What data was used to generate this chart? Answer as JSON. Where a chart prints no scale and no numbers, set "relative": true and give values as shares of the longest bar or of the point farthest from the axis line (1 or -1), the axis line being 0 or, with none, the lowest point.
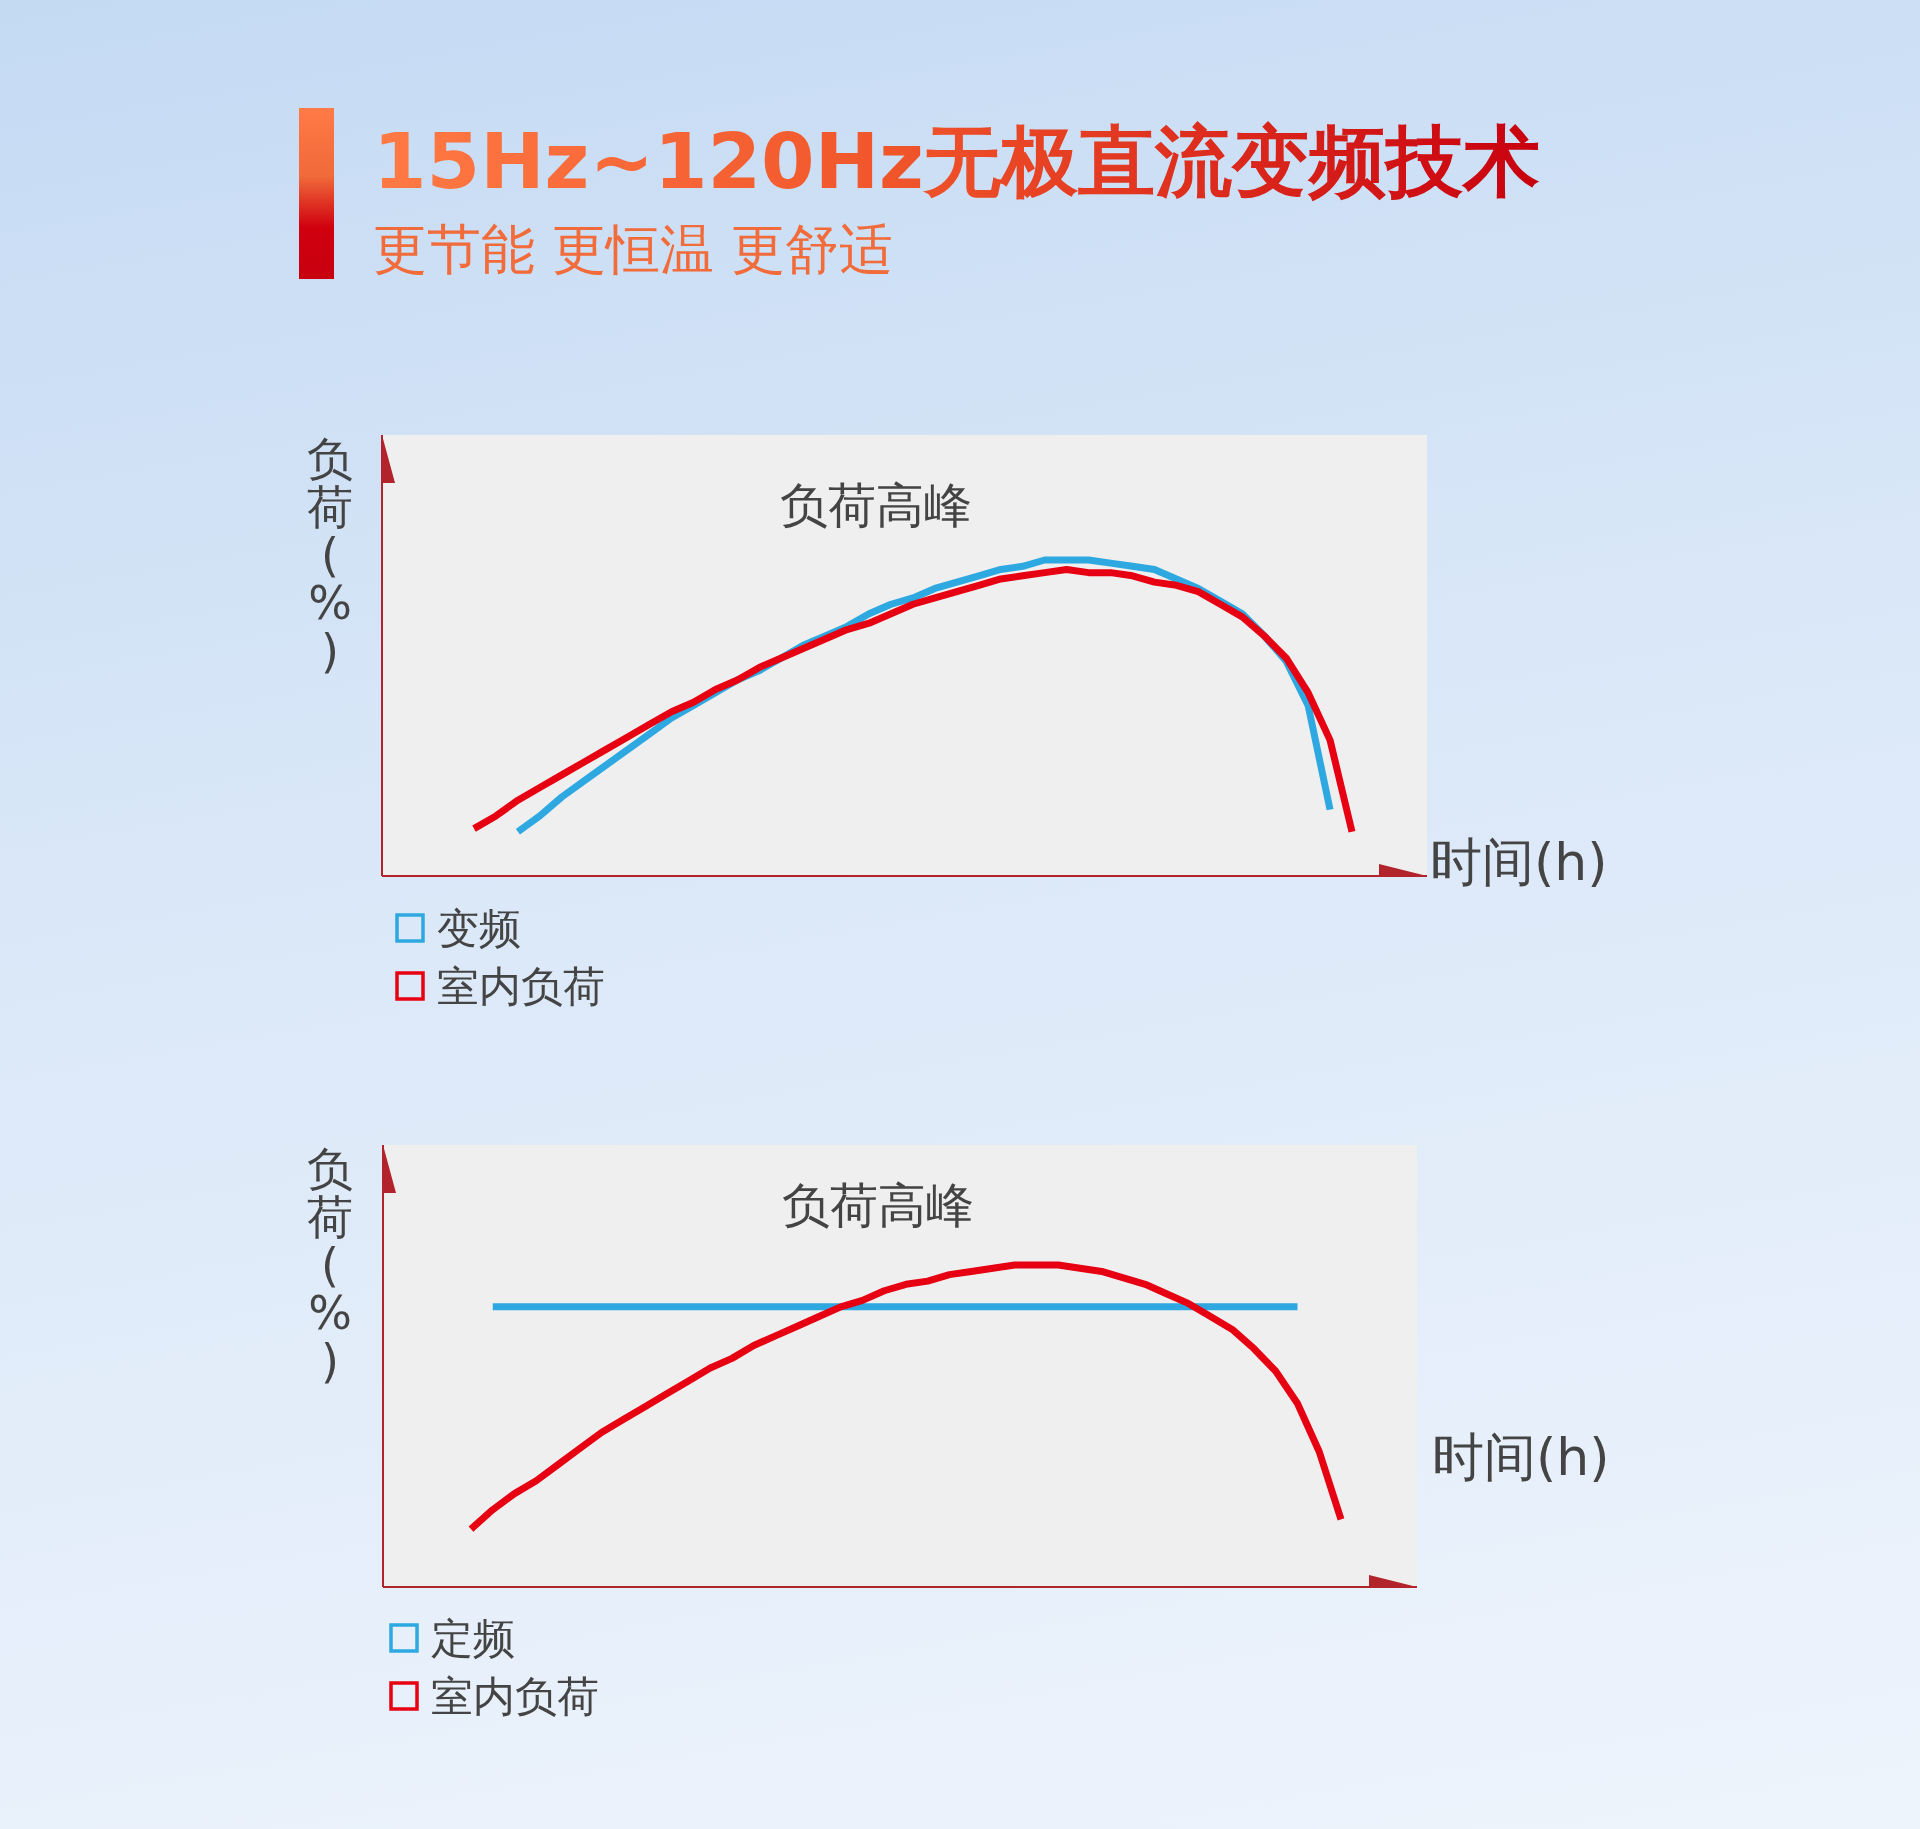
{
  "chart_data": [
    {
      "type": "line",
      "title": "15Hz~120Hz无极直流变频技术",
      "subtitle": "更节能 更恒温 更舒适",
      "relative": true,
      "xlabel": "时间(h)",
      "ylabel": "负荷(%)",
      "annotations": [
        "负荷高峰"
      ],
      "legend": "bottom left",
      "categories": [
        null,
        null,
        null,
        null,
        null,
        null,
        null,
        null,
        null,
        null,
        null,
        null,
        null,
        null,
        null,
        null,
        null,
        null,
        null,
        null,
        null,
        null,
        null,
        null,
        null,
        null,
        null,
        null,
        null,
        null,
        null,
        null,
        null,
        null,
        null,
        null,
        null,
        null,
        null,
        null,
        null
      ],
      "series": [
        {
          "name": "变频",
          "color": "#2ea8e0",
          "values": [
            null,
            null,
            0.14,
            0.19,
            0.25,
            0.3,
            0.35,
            0.4,
            0.45,
            0.5,
            0.54,
            0.58,
            0.62,
            0.65,
            0.69,
            0.73,
            0.76,
            0.79,
            0.83,
            0.86,
            0.88,
            0.91,
            0.93,
            0.95,
            0.97,
            0.98,
            1.0,
            1.0,
            1.0,
            0.99,
            0.98,
            0.97,
            0.94,
            0.91,
            0.87,
            0.83,
            0.76,
            0.68,
            0.54,
            0.21,
            null
          ]
        },
        {
          "name": "室内负荷",
          "color": "#e60012",
          "values": [
            0.15,
            0.19,
            0.24,
            0.28,
            0.32,
            0.36,
            0.4,
            0.44,
            0.48,
            0.52,
            0.55,
            0.59,
            0.62,
            0.66,
            0.69,
            0.72,
            0.75,
            0.78,
            0.8,
            0.83,
            0.86,
            0.88,
            0.9,
            0.92,
            0.94,
            0.95,
            0.96,
            0.97,
            0.96,
            0.96,
            0.95,
            0.93,
            0.92,
            0.9,
            0.86,
            0.82,
            0.76,
            0.69,
            0.58,
            0.43,
            0.14
          ]
        }
      ]
    },
    {
      "type": "line",
      "relative": true,
      "xlabel": "时间(h)",
      "ylabel": "负荷(%)",
      "annotations": [
        "负荷高峰"
      ],
      "legend": "bottom left",
      "categories": [
        null,
        null,
        null,
        null,
        null,
        null,
        null,
        null,
        null,
        null,
        null,
        null,
        null,
        null,
        null,
        null,
        null,
        null,
        null,
        null,
        null,
        null,
        null,
        null,
        null,
        null,
        null,
        null,
        null,
        null,
        null,
        null,
        null,
        null,
        null,
        null,
        null,
        null,
        null,
        null,
        null
      ],
      "series": [
        {
          "name": "定频",
          "color": "#2ea8e0",
          "values": [
            null,
            0.87,
            0.87,
            0.87,
            0.87,
            0.87,
            0.87,
            0.87,
            0.87,
            0.87,
            0.87,
            0.87,
            0.87,
            0.87,
            0.87,
            0.87,
            0.87,
            0.87,
            0.87,
            0.87,
            0.87,
            0.87,
            0.87,
            0.87,
            0.87,
            0.87,
            0.87,
            0.87,
            0.87,
            0.87,
            0.87,
            0.87,
            0.87,
            0.87,
            0.87,
            0.87,
            0.87,
            0.87,
            0.87,
            null,
            null
          ]
        },
        {
          "name": "室内负荷",
          "color": "#e60012",
          "values": [
            0.18,
            0.24,
            0.29,
            0.33,
            0.38,
            0.43,
            0.48,
            0.52,
            0.56,
            0.6,
            0.64,
            0.68,
            0.71,
            0.75,
            0.78,
            0.81,
            0.84,
            0.87,
            0.89,
            0.92,
            0.94,
            0.95,
            0.97,
            0.98,
            0.99,
            1.0,
            1.0,
            1.0,
            0.99,
            0.98,
            0.96,
            0.94,
            0.91,
            0.88,
            0.84,
            0.8,
            0.74,
            0.67,
            0.57,
            0.42,
            0.21
          ]
        }
      ]
    }
  ]
}
